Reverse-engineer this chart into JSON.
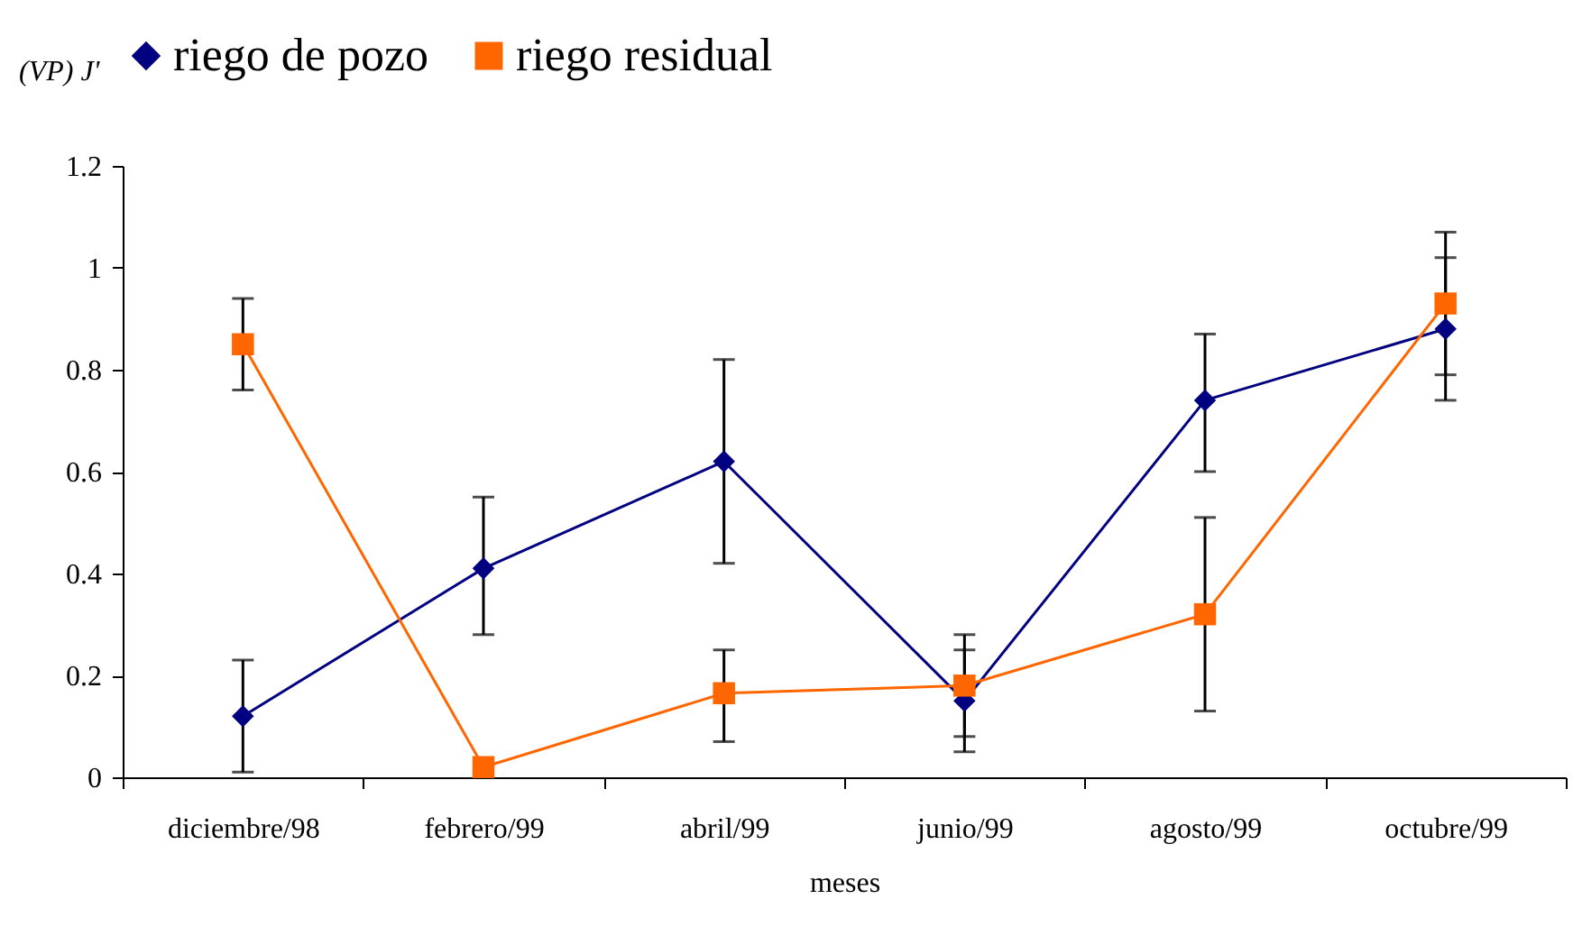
{
  "chart_data": {
    "type": "line",
    "ylabel": "(VP) J'",
    "xlabel": "meses",
    "legend": "top",
    "grid": false,
    "categories": [
      "diciembre/98",
      "febrero/99",
      "abril/99",
      "junio/99",
      "agosto/99",
      "octubre/99"
    ],
    "ylim": [
      0,
      1.2
    ],
    "yticks": [
      {
        "value": 0,
        "label": "0"
      },
      0.2,
      0.4,
      0.6,
      0.8,
      {
        "value": 1,
        "label": "1"
      },
      1.2
    ],
    "series": [
      {
        "name": "riego de pozo",
        "color": "#000080",
        "marker": "diamond",
        "values": [
          0.12,
          0.41,
          0.62,
          0.15,
          0.74,
          0.88
        ],
        "errors": [
          [
            0.01,
            0.23
          ],
          [
            0.28,
            0.55
          ],
          [
            0.42,
            0.82
          ],
          [
            0.05,
            0.25
          ],
          [
            0.6,
            0.87
          ],
          [
            0.74,
            1.02
          ]
        ]
      },
      {
        "name": "riego residual",
        "color": "#ff6600",
        "marker": "square",
        "values": [
          0.85,
          0.02,
          0.165,
          0.18,
          0.32,
          0.93
        ],
        "errors": [
          [
            0.76,
            0.94
          ],
          null,
          [
            0.07,
            0.25
          ],
          [
            0.08,
            0.28
          ],
          [
            0.13,
            0.51
          ],
          [
            0.79,
            1.07
          ]
        ]
      }
    ]
  }
}
